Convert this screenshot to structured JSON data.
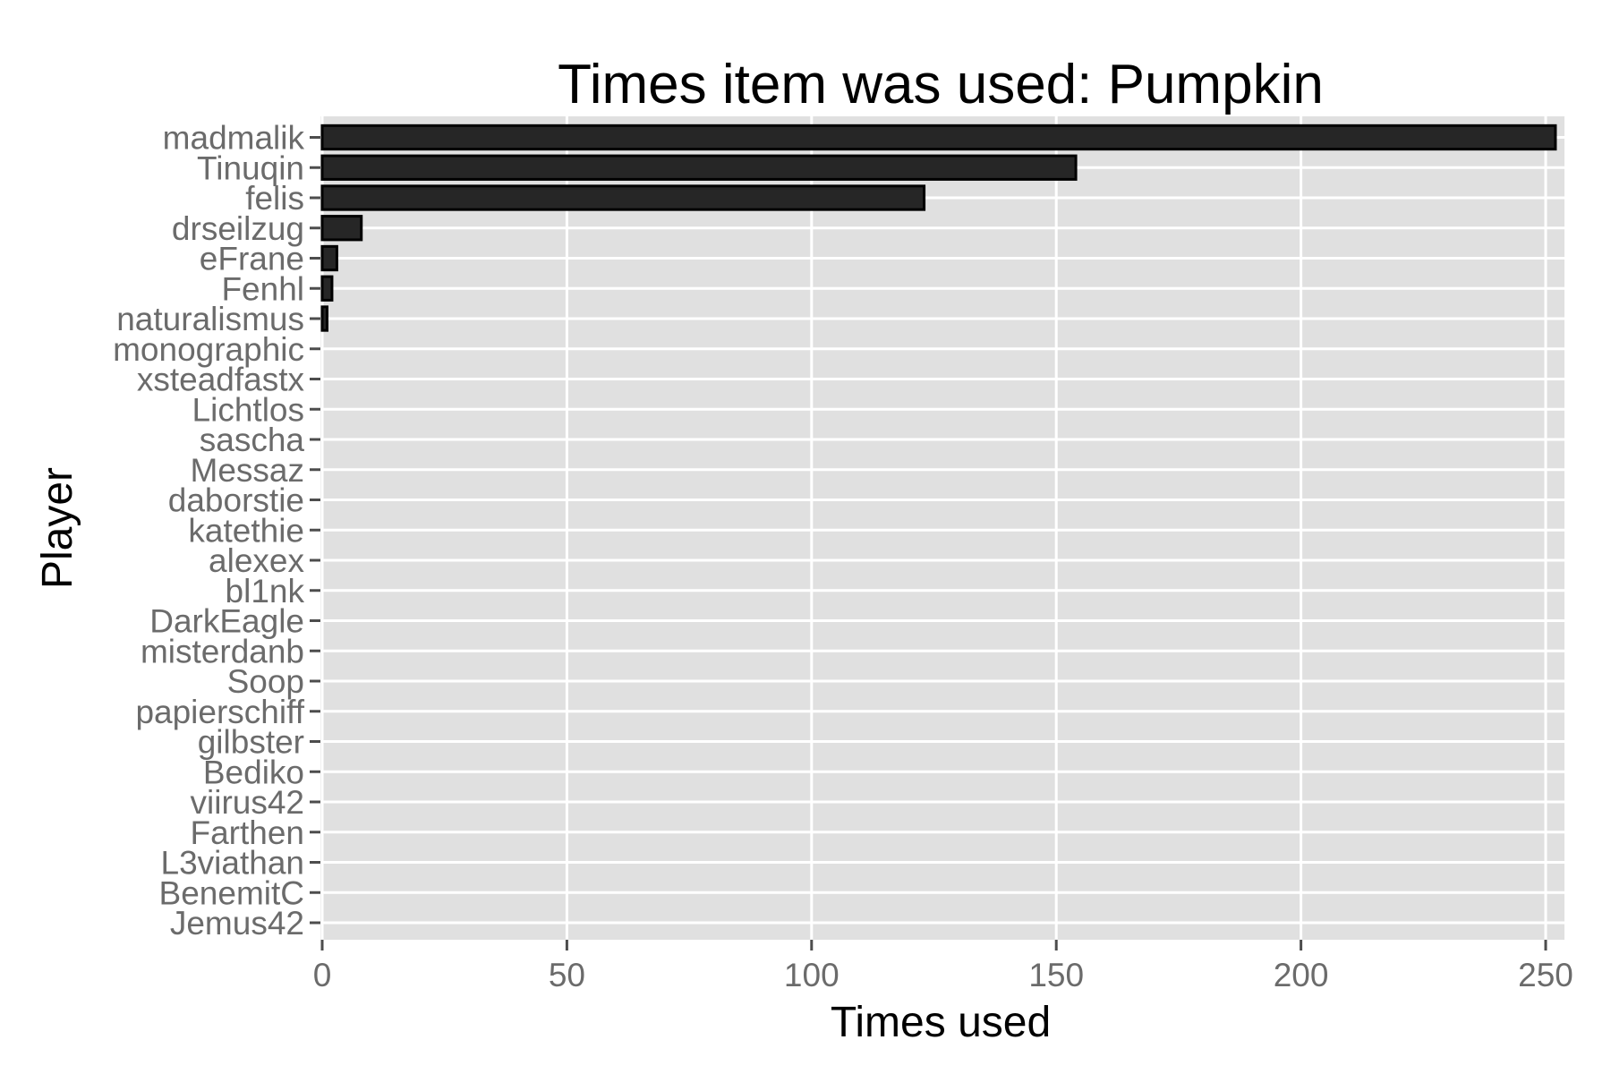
{
  "chart_data": {
    "type": "bar",
    "orientation": "horizontal",
    "title": "Times item was used: Pumpkin",
    "xlabel": "Times used",
    "ylabel": "Player",
    "xlim": [
      0,
      254
    ],
    "xticks": [
      0,
      50,
      100,
      150,
      200,
      250
    ],
    "grid": true,
    "legend": "none",
    "categories": [
      "madmalik",
      "Tinuqin",
      "felis",
      "drseilzug",
      "eFrane",
      "Fenhl",
      "naturalismus",
      "monographic",
      "xsteadfastx",
      "Lichtlos",
      "sascha",
      "Messaz",
      "daborstie",
      "katethie",
      "alexex",
      "bl1nk",
      "DarkEagle",
      "misterdanb",
      "Soop",
      "papierschiff",
      "gilbster",
      "Bediko",
      "viirus42",
      "Farthen",
      "L3viathan",
      "BenemitC",
      "Jemus42"
    ],
    "values": [
      252,
      154,
      123,
      8,
      3,
      2,
      1,
      0,
      0,
      0,
      0,
      0,
      0,
      0,
      0,
      0,
      0,
      0,
      0,
      0,
      0,
      0,
      0,
      0,
      0,
      0,
      0
    ],
    "colors": {
      "panel_background": "#e0e0e0",
      "grid": "#ffffff",
      "bar_fill": "#262626",
      "bar_border": "#000000",
      "tick_text": "#6b6b6b",
      "tick_mark": "#4d4d4d"
    }
  }
}
